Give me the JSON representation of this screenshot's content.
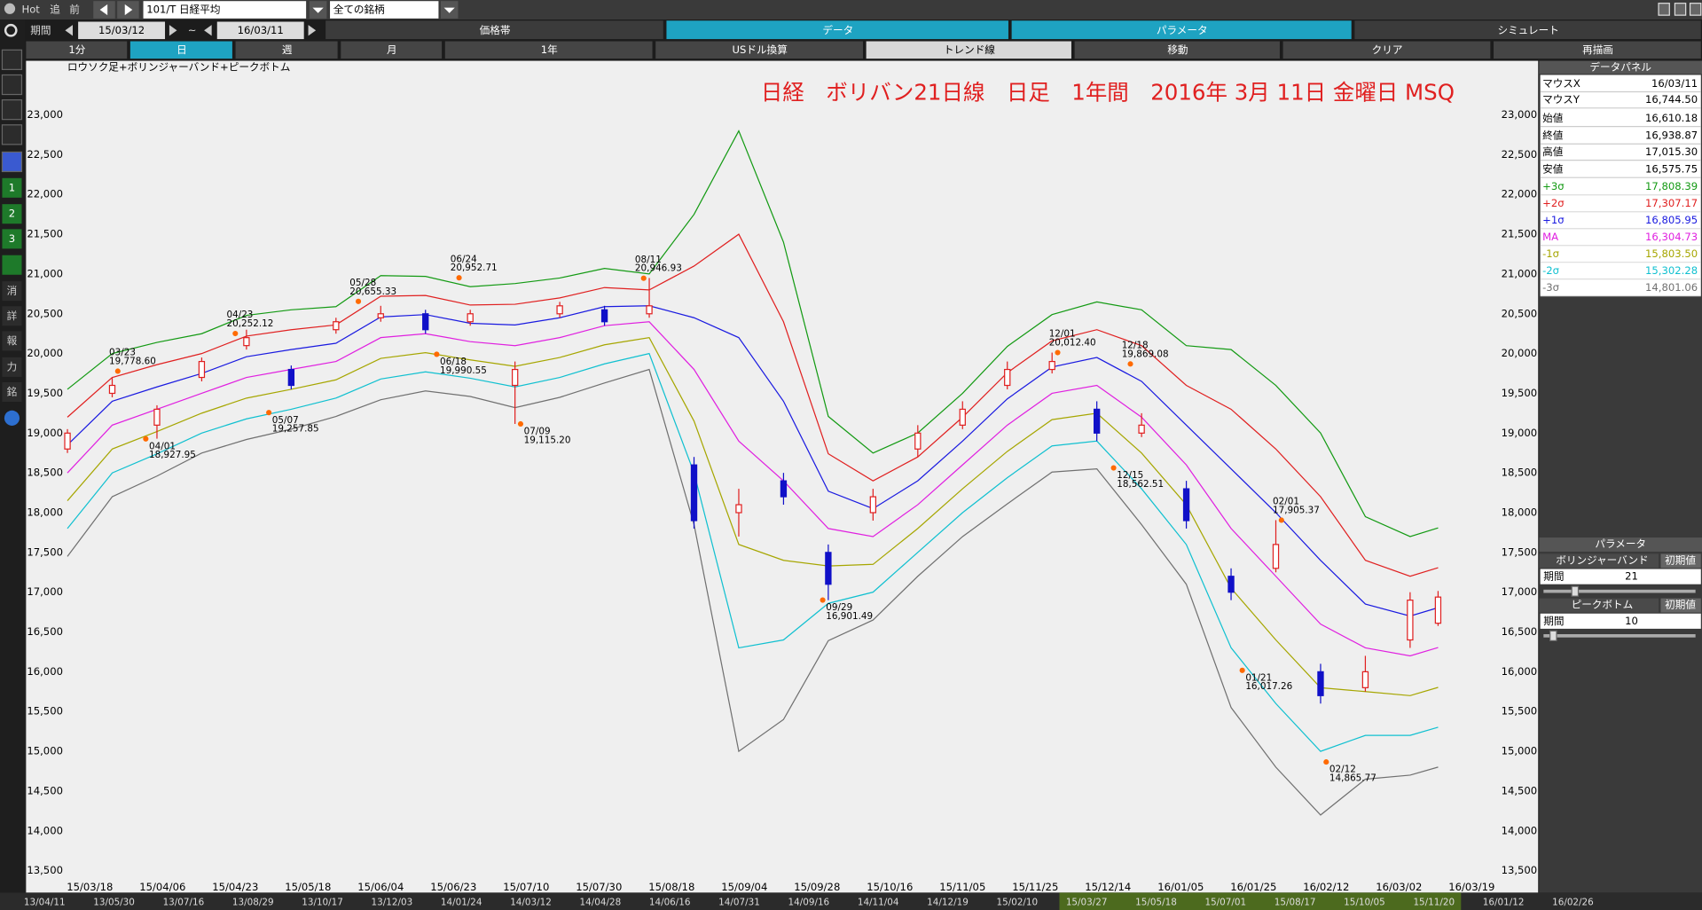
{
  "toolbar": {
    "hot": "Hot",
    "buttons": [
      "追",
      "前"
    ],
    "symbol": "101/T 日経平均",
    "universe": "全ての銘柄",
    "period_label": "期間",
    "from": "15/03/12",
    "tilde": "~",
    "to": "16/03/11",
    "tabs": [
      "価格帯",
      "データ",
      "パラメータ",
      "シミュレート"
    ]
  },
  "toolbar2": [
    "1分",
    "日",
    "週",
    "月",
    "1年",
    "USドル換算",
    "トレンド線",
    "移動",
    "クリア",
    "再描画"
  ],
  "sidebar": [
    "1",
    "2",
    "3",
    "消",
    "詳",
    "報",
    "力",
    "銘"
  ],
  "chart_data": {
    "type": "candlestick",
    "title": "日経　ボリバン21日線　日足　1年間　2016年 3月 11日 金曜日 MSQ",
    "subtitle": "ロウソク足+ボリンジャーバンド+ピークボトム",
    "grid": false,
    "xlim": [
      -7.4,
      255.7
    ],
    "ylim": [
      13360,
      23680
    ],
    "xticks": [
      {
        "value": 4,
        "label": "15/03/18"
      },
      {
        "value": 17,
        "label": "15/04/06"
      },
      {
        "value": 30,
        "label": "15/04/23"
      },
      {
        "value": 43,
        "label": "15/05/18"
      },
      {
        "value": 56,
        "label": "15/06/04"
      },
      {
        "value": 69,
        "label": "15/06/23"
      },
      {
        "value": 82,
        "label": "15/07/10"
      },
      {
        "value": 95,
        "label": "15/07/30"
      },
      {
        "value": 108,
        "label": "15/08/18"
      },
      {
        "value": 121,
        "label": "15/09/04"
      },
      {
        "value": 134,
        "label": "15/09/28"
      },
      {
        "value": 147,
        "label": "15/10/16"
      },
      {
        "value": 160,
        "label": "15/11/05"
      },
      {
        "value": 173,
        "label": "15/11/25"
      },
      {
        "value": 186,
        "label": "15/12/14"
      },
      {
        "value": 199,
        "label": "16/01/05"
      },
      {
        "value": 212,
        "label": "16/01/25"
      },
      {
        "value": 225,
        "label": "16/02/12"
      },
      {
        "value": 238,
        "label": "16/03/02"
      },
      {
        "value": 251,
        "label": "16/03/19"
      }
    ],
    "yticks": [
      {
        "value": 13500,
        "label": "13,500"
      },
      {
        "value": 14000,
        "label": "14,000"
      },
      {
        "value": 14500,
        "label": "14,500"
      },
      {
        "value": 15000,
        "label": "15,000"
      },
      {
        "value": 15500,
        "label": "15,500"
      },
      {
        "value": 16000,
        "label": "16,000"
      },
      {
        "value": 16500,
        "label": "16,500"
      },
      {
        "value": 17000,
        "label": "17,000"
      },
      {
        "value": 17500,
        "label": "17,500"
      },
      {
        "value": 18000,
        "label": "18,000"
      },
      {
        "value": 18500,
        "label": "18,500"
      },
      {
        "value": 19000,
        "label": "19,000"
      },
      {
        "value": 19500,
        "label": "19,500"
      },
      {
        "value": 20000,
        "label": "20,000"
      },
      {
        "value": 20500,
        "label": "20,500"
      },
      {
        "value": 21000,
        "label": "21,000"
      },
      {
        "value": 21500,
        "label": "21,500"
      },
      {
        "value": 22000,
        "label": "22,000"
      },
      {
        "value": 22500,
        "label": "22,500"
      },
      {
        "value": 23000,
        "label": "23,000"
      }
    ],
    "x": [
      0,
      8,
      16,
      24,
      32,
      40,
      48,
      56,
      64,
      72,
      80,
      88,
      96,
      104,
      112,
      120,
      128,
      136,
      144,
      152,
      160,
      168,
      176,
      184,
      192,
      200,
      208,
      216,
      224,
      232,
      240,
      245
    ],
    "open": [
      18800,
      19500,
      19100,
      19700,
      20100,
      19800,
      20300,
      20450,
      20500,
      20400,
      19600,
      20500,
      20550,
      20500,
      18600,
      18000,
      18400,
      17500,
      18000,
      18800,
      19100,
      19600,
      19800,
      19300,
      19000,
      18300,
      17200,
      17300,
      16000,
      15800,
      16400,
      16610.18
    ],
    "high": [
      19050,
      19700,
      19350,
      19950,
      20300,
      19850,
      20450,
      20600,
      20550,
      20550,
      19900,
      20650,
      20600,
      20950,
      18700,
      18300,
      18500,
      17600,
      18300,
      19100,
      19400,
      19900,
      20012,
      19400,
      19250,
      18400,
      17300,
      17906,
      16100,
      16200,
      17000,
      17015.3
    ],
    "low": [
      18750,
      19450,
      18930,
      19650,
      20050,
      19550,
      20250,
      20400,
      20250,
      20350,
      19115,
      20450,
      20350,
      20450,
      17800,
      17700,
      18100,
      16900,
      17900,
      18700,
      19050,
      19550,
      19750,
      18900,
      18950,
      17800,
      16900,
      17250,
      15600,
      15750,
      16300,
      16575.75
    ],
    "close": [
      19000,
      19600,
      19300,
      19900,
      20200,
      19600,
      20400,
      20500,
      20300,
      20500,
      19800,
      20600,
      20400,
      20600,
      17900,
      18100,
      18200,
      17100,
      18200,
      19000,
      19300,
      19800,
      19900,
      19000,
      19100,
      17900,
      17000,
      17600,
      15700,
      16000,
      16900,
      16938.87
    ],
    "up_color": "#e02020",
    "down_color": "#1010c8",
    "series": [
      {
        "name": "+3σ",
        "color": "#139a13",
        "values": [
          19550,
          20000,
          20140,
          20250,
          20480,
          20550,
          20590,
          20980,
          20970,
          20840,
          20880,
          20950,
          21070,
          21000,
          21750,
          22800,
          21400,
          19210,
          18750,
          19000,
          19500,
          20090,
          20490,
          20650,
          20550,
          20100,
          20050,
          19600,
          19000,
          17950,
          17700,
          17808.39
        ]
      },
      {
        "name": "+2σ",
        "color": "#e02020",
        "values": [
          19200,
          19700,
          19860,
          20000,
          20220,
          20300,
          20360,
          20720,
          20730,
          20610,
          20620,
          20700,
          20830,
          20800,
          21100,
          21500,
          20400,
          18740,
          18400,
          18700,
          19200,
          19760,
          20160,
          20300,
          20100,
          19600,
          19300,
          18800,
          18200,
          17400,
          17200,
          17307.17
        ]
      },
      {
        "name": "+1σ",
        "color": "#1a1ae0",
        "values": [
          18850,
          19400,
          19580,
          19750,
          19960,
          20050,
          20130,
          20460,
          20490,
          20380,
          20360,
          20450,
          20590,
          20600,
          20450,
          20200,
          19400,
          18270,
          18050,
          18400,
          18900,
          19430,
          19830,
          19950,
          19650,
          19100,
          18550,
          18000,
          17400,
          16850,
          16700,
          16805.95
        ]
      },
      {
        "name": "MA",
        "color": "#e020e0",
        "values": [
          18500,
          19100,
          19300,
          19500,
          19700,
          19800,
          19900,
          20200,
          20250,
          20150,
          20100,
          20200,
          20350,
          20400,
          19800,
          18900,
          18400,
          17800,
          17700,
          18100,
          18600,
          19100,
          19500,
          19600,
          19200,
          18600,
          17800,
          17200,
          16600,
          16300,
          16200,
          16304.73
        ]
      },
      {
        "name": "-1σ",
        "color": "#a6a600",
        "values": [
          18150,
          18800,
          19020,
          19250,
          19440,
          19550,
          19670,
          19940,
          20010,
          19920,
          19840,
          19950,
          20110,
          20200,
          19150,
          17600,
          17400,
          17330,
          17350,
          17800,
          18300,
          18770,
          19170,
          19250,
          18750,
          18100,
          17050,
          16400,
          15800,
          15750,
          15700,
          15803.5
        ]
      },
      {
        "name": "-2σ",
        "color": "#10c0d0",
        "values": [
          17800,
          18500,
          18740,
          19000,
          19180,
          19300,
          19440,
          19680,
          19770,
          19690,
          19580,
          19700,
          19870,
          20000,
          18500,
          16300,
          16400,
          16860,
          17000,
          17500,
          18000,
          18440,
          18840,
          18900,
          18300,
          17600,
          16300,
          15600,
          15000,
          15200,
          15200,
          15302.28
        ]
      },
      {
        "name": "-3σ",
        "color": "#707070",
        "values": [
          17450,
          18200,
          18460,
          18750,
          18920,
          19050,
          19210,
          19420,
          19530,
          19460,
          19320,
          19450,
          19630,
          19800,
          17850,
          15000,
          15400,
          16390,
          16650,
          17200,
          17700,
          18110,
          18510,
          18550,
          17850,
          17100,
          15550,
          14800,
          14200,
          14650,
          14700,
          14801.06
        ]
      }
    ],
    "annotations": [
      {
        "x": 9,
        "value": 19778.6,
        "date": "03/23",
        "value_label": "19,778.60"
      },
      {
        "x": 14,
        "value": 18927.95,
        "date": "04/01",
        "value_label": "18,927.95"
      },
      {
        "x": 30,
        "value": 20252.12,
        "date": "04/23",
        "value_label": "20,252.12"
      },
      {
        "x": 36,
        "value": 19257.85,
        "date": "05/07",
        "value_label": "19,257.85"
      },
      {
        "x": 52,
        "value": 20655.33,
        "date": "05/28",
        "value_label": "20,655.33"
      },
      {
        "x": 66,
        "value": 19990.55,
        "date": "06/18",
        "value_label": "19,990.55"
      },
      {
        "x": 70,
        "value": 20952.71,
        "date": "06/24",
        "value_label": "20,952.71"
      },
      {
        "x": 81,
        "value": 19115.2,
        "date": "07/09",
        "value_label": "19,115.20"
      },
      {
        "x": 103,
        "value": 20946.93,
        "date": "08/11",
        "value_label": "20,946.93"
      },
      {
        "x": 135,
        "value": 16901.49,
        "date": "09/29",
        "value_label": "16,901.49"
      },
      {
        "x": 177,
        "value": 20012.4,
        "date": "12/01",
        "value_label": "20,012.40"
      },
      {
        "x": 187,
        "value": 18562.51,
        "date": "12/15",
        "value_label": "18,562.51"
      },
      {
        "x": 190,
        "value": 19869.08,
        "date": "12/18",
        "value_label": "19,869.08"
      },
      {
        "x": 210,
        "value": 16017.26,
        "date": "01/21",
        "value_label": "16,017.26"
      },
      {
        "x": 217,
        "value": 17905.37,
        "date": "02/01",
        "value_label": "17,905.37"
      },
      {
        "x": 225,
        "value": 14865.77,
        "date": "02/12",
        "value_label": "14,865.77"
      }
    ]
  },
  "data_panel": {
    "title": "データパネル",
    "rows": [
      [
        "マウスX",
        "16/03/11"
      ],
      [
        "マウスY",
        "16,744.50"
      ],
      [
        "始値",
        "16,610.18"
      ],
      [
        "終値",
        "16,938.87"
      ],
      [
        "高値",
        "17,015.30"
      ],
      [
        "安値",
        "16,575.75"
      ]
    ],
    "band_values": [
      "17,808.39",
      "17,307.17",
      "16,805.95",
      "16,304.73",
      "15,803.50",
      "15,302.28",
      "14,801.06"
    ]
  },
  "parameter_panel": {
    "title": "パラメータ",
    "sections": [
      {
        "name": "ボリンジャーバンド",
        "reset": "初期値",
        "param": "期間",
        "value": "21"
      },
      {
        "name": "ピークボトム",
        "reset": "初期値",
        "param": "期間",
        "value": "10"
      }
    ]
  },
  "overview_dates": [
    "13/04/11",
    "13/05/30",
    "13/07/16",
    "13/08/29",
    "13/10/17",
    "13/12/03",
    "14/01/24",
    "14/03/12",
    "14/04/28",
    "14/06/16",
    "14/07/31",
    "14/09/16",
    "14/11/04",
    "14/12/19",
    "15/02/10",
    "15/03/27",
    "15/05/18",
    "15/07/01",
    "15/08/17",
    "15/10/05",
    "15/11/20",
    "16/01/12",
    "16/02/26"
  ]
}
